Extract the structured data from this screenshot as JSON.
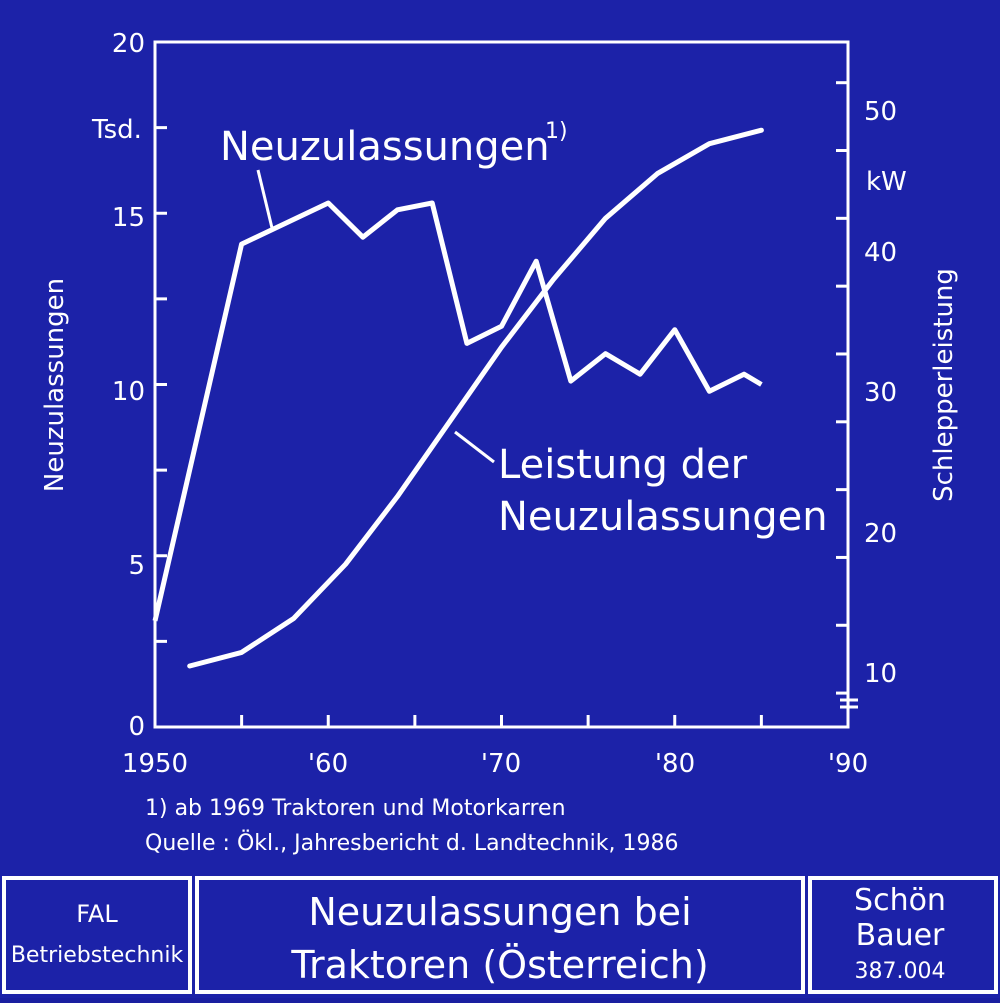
{
  "chart_data": {
    "type": "line",
    "x_ticks": [
      "1950",
      "'60",
      "'70",
      "'80",
      "'90"
    ],
    "xlim": [
      1950,
      1990
    ],
    "left_axis": {
      "label": "Neuzulassungen",
      "unit": "Tsd.",
      "ticks": [
        "0",
        "5",
        "10",
        "15",
        "20"
      ],
      "ylim": [
        0,
        20
      ]
    },
    "right_axis": {
      "label": "Schlepperleistung",
      "unit": "kW",
      "ticks": [
        "10",
        "20",
        "30",
        "40",
        "50"
      ],
      "ylim_note": "axis break at bottom",
      "ylim": [
        7.5,
        58
      ]
    },
    "series": [
      {
        "name": "Neuzulassungen",
        "footnote_marker": "1)",
        "axis": "left",
        "x": [
          1950,
          1955,
          1960,
          1962,
          1964,
          1966,
          1968,
          1970,
          1972,
          1974,
          1976,
          1978,
          1980,
          1982,
          1984,
          1985
        ],
        "values": [
          3.1,
          14.1,
          15.3,
          14.3,
          15.1,
          15.3,
          11.2,
          11.7,
          13.6,
          10.1,
          10.9,
          10.3,
          11.6,
          9.8,
          10.3,
          10.0
        ]
      },
      {
        "name": "Leistung der Neuzulassungen",
        "axis": "right",
        "x": [
          1952,
          1955,
          1958,
          1961,
          1964,
          1967,
          1970,
          1973,
          1976,
          1979,
          1982,
          1985
        ],
        "values": [
          12.0,
          13.0,
          15.5,
          19.5,
          24.5,
          30.0,
          35.5,
          40.5,
          45.0,
          48.3,
          50.5,
          51.5
        ]
      }
    ],
    "grid": false
  },
  "footnotes": {
    "line1": "1) ab 1969 Traktoren und Motorkarren",
    "line2": "Quelle : Ökl., Jahresbericht d. Landtechnik, 1986"
  },
  "footer": {
    "left_line1": "FAL",
    "left_line2": "Betriebstechnik",
    "title_line1": "Neuzulassungen bei",
    "title_line2": "Traktoren (Österreich)",
    "right_line1": "Schön",
    "right_line2": "Bauer",
    "right_line3": "387.004"
  },
  "colors": {
    "background": "#1c22a8",
    "foreground": "#ffffff"
  }
}
